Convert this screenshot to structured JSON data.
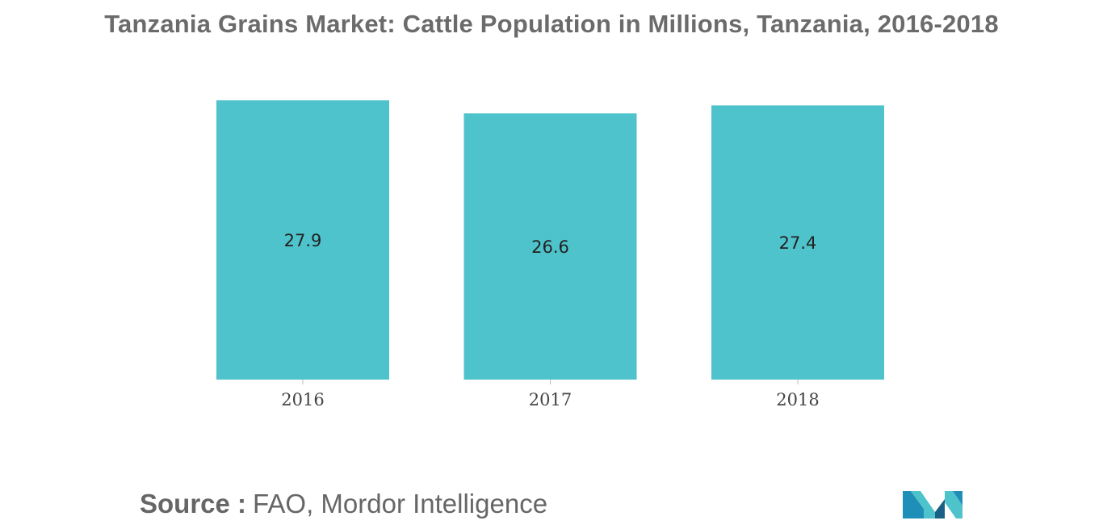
{
  "source": {
    "label": "Source :",
    "text": "FAO, Mordor Intelligence"
  },
  "logo": {
    "icon": "mordor-intelligence-logo",
    "colors": [
      "#1f8fb8",
      "#4fc3cb",
      "#1a5f85"
    ]
  },
  "chart_data": {
    "type": "bar",
    "title": "Tanzania Grains Market: Cattle Population in Millions, Tanzania, 2016-2018",
    "xlabel": "",
    "ylabel": "",
    "categories": [
      "2016",
      "2017",
      "2018"
    ],
    "values": [
      27.9,
      26.6,
      27.4
    ],
    "data_labels": [
      "27.9",
      "26.6",
      "27.4"
    ],
    "ylim": [
      0,
      28
    ],
    "bar_color": "#4fc3cb",
    "grid": false,
    "legend": "none"
  }
}
